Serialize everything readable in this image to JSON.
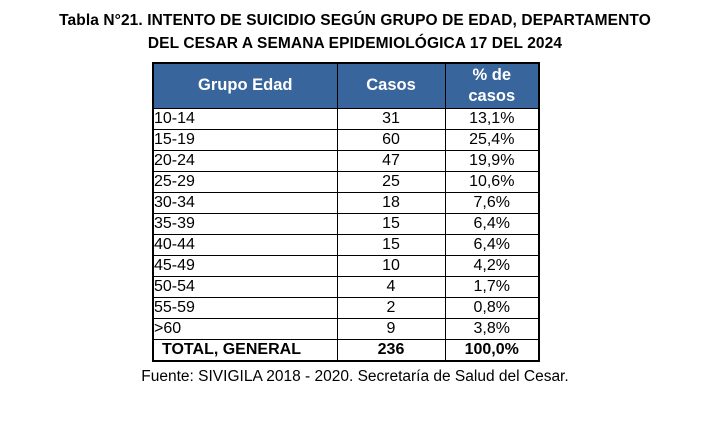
{
  "title": {
    "line1": "Tabla N°21. INTENTO DE SUICIDIO SEGÚN GRUPO DE EDAD, DEPARTAMENTO",
    "line2": "DEL CESAR A SEMANA EPIDEMIOLÓGICA 17 DEL 2024"
  },
  "table": {
    "columns": [
      "Grupo Edad",
      "Casos",
      "% de casos"
    ],
    "rows": [
      {
        "grupo_edad": "10-14",
        "casos": "31",
        "pct_casos": "13,1%"
      },
      {
        "grupo_edad": "15-19",
        "casos": "60",
        "pct_casos": "25,4%"
      },
      {
        "grupo_edad": "20-24",
        "casos": "47",
        "pct_casos": "19,9%"
      },
      {
        "grupo_edad": "25-29",
        "casos": "25",
        "pct_casos": "10,6%"
      },
      {
        "grupo_edad": "30-34",
        "casos": "18",
        "pct_casos": "7,6%"
      },
      {
        "grupo_edad": "35-39",
        "casos": "15",
        "pct_casos": "6,4%"
      },
      {
        "grupo_edad": "40-44",
        "casos": "15",
        "pct_casos": "6,4%"
      },
      {
        "grupo_edad": "45-49",
        "casos": "10",
        "pct_casos": "4,2%"
      },
      {
        "grupo_edad": "50-54",
        "casos": "4",
        "pct_casos": "1,7%"
      },
      {
        "grupo_edad": "55-59",
        "casos": "2",
        "pct_casos": "0,8%"
      },
      {
        "grupo_edad": ">60",
        "casos": "9",
        "pct_casos": "3,8%"
      }
    ],
    "total_row": {
      "grupo_edad": "TOTAL, GENERAL",
      "casos": "236",
      "pct_casos": "100,0%"
    }
  },
  "footer": {
    "fuente": "Fuente: SIVIGILA 2018 - 2020. Secretaría de Salud del Cesar."
  },
  "colors": {
    "header_bg": "#38659B",
    "header_text": "#FFFFFF",
    "border": "#000000",
    "body_bg": "#FFFFFF",
    "text": "#000000"
  }
}
